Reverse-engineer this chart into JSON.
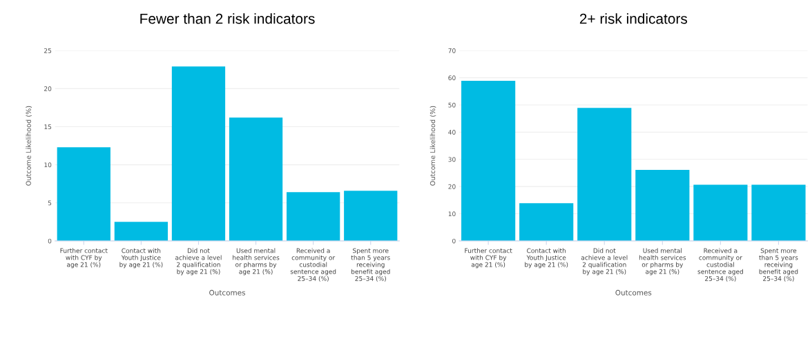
{
  "chart_data": [
    {
      "type": "bar",
      "title": "Fewer than 2 risk indicators",
      "xlabel": "Outcomes",
      "ylabel": "Outcome Likelihood (%)",
      "categories": [
        "Further contact\nwith CYF by\nage 21 (%)",
        "Contact with\nYouth Justice\nby age 21 (%)",
        "Did not\nachieve a level\n2 qualification\nby age 21 (%)",
        "Used mental\nhealth services\nor pharms by\nage 21 (%)",
        "Received a\ncommunity or\ncustodial\nsentence aged\n25–34 (%)",
        "Spent more\nthan 5 years\nreceiving\nbenefit aged\n25–34 (%)"
      ],
      "values": [
        12.3,
        2.5,
        22.9,
        16.2,
        6.4,
        6.6
      ],
      "color": "#00bbe3",
      "ylim": [
        0,
        25
      ],
      "yticks": [
        0,
        5,
        10,
        15,
        20,
        25
      ],
      "grid": "y"
    },
    {
      "type": "bar",
      "title": "2+ risk indicators",
      "xlabel": "Outcomes",
      "ylabel": "Outcome Likelihood (%)",
      "categories": [
        "Further contact\nwith CYF by\nage 21 (%)",
        "Contact with\nYouth Justice\nby age 21 (%)",
        "Did not\nachieve a level\n2 qualification\nby age 21 (%)",
        "Used mental\nhealth services\nor pharms by\nage 21 (%)",
        "Received a\ncommunity or\ncustodial\nsentence aged\n25–34 (%)",
        "Spent more\nthan 5 years\nreceiving\nbenefit aged\n25–34 (%)"
      ],
      "values": [
        58.9,
        13.9,
        48.9,
        26.1,
        20.7,
        20.7
      ],
      "color": "#00bbe3",
      "ylim": [
        0,
        70
      ],
      "yticks": [
        0,
        10,
        20,
        30,
        40,
        50,
        60,
        70
      ],
      "grid": "y"
    }
  ]
}
